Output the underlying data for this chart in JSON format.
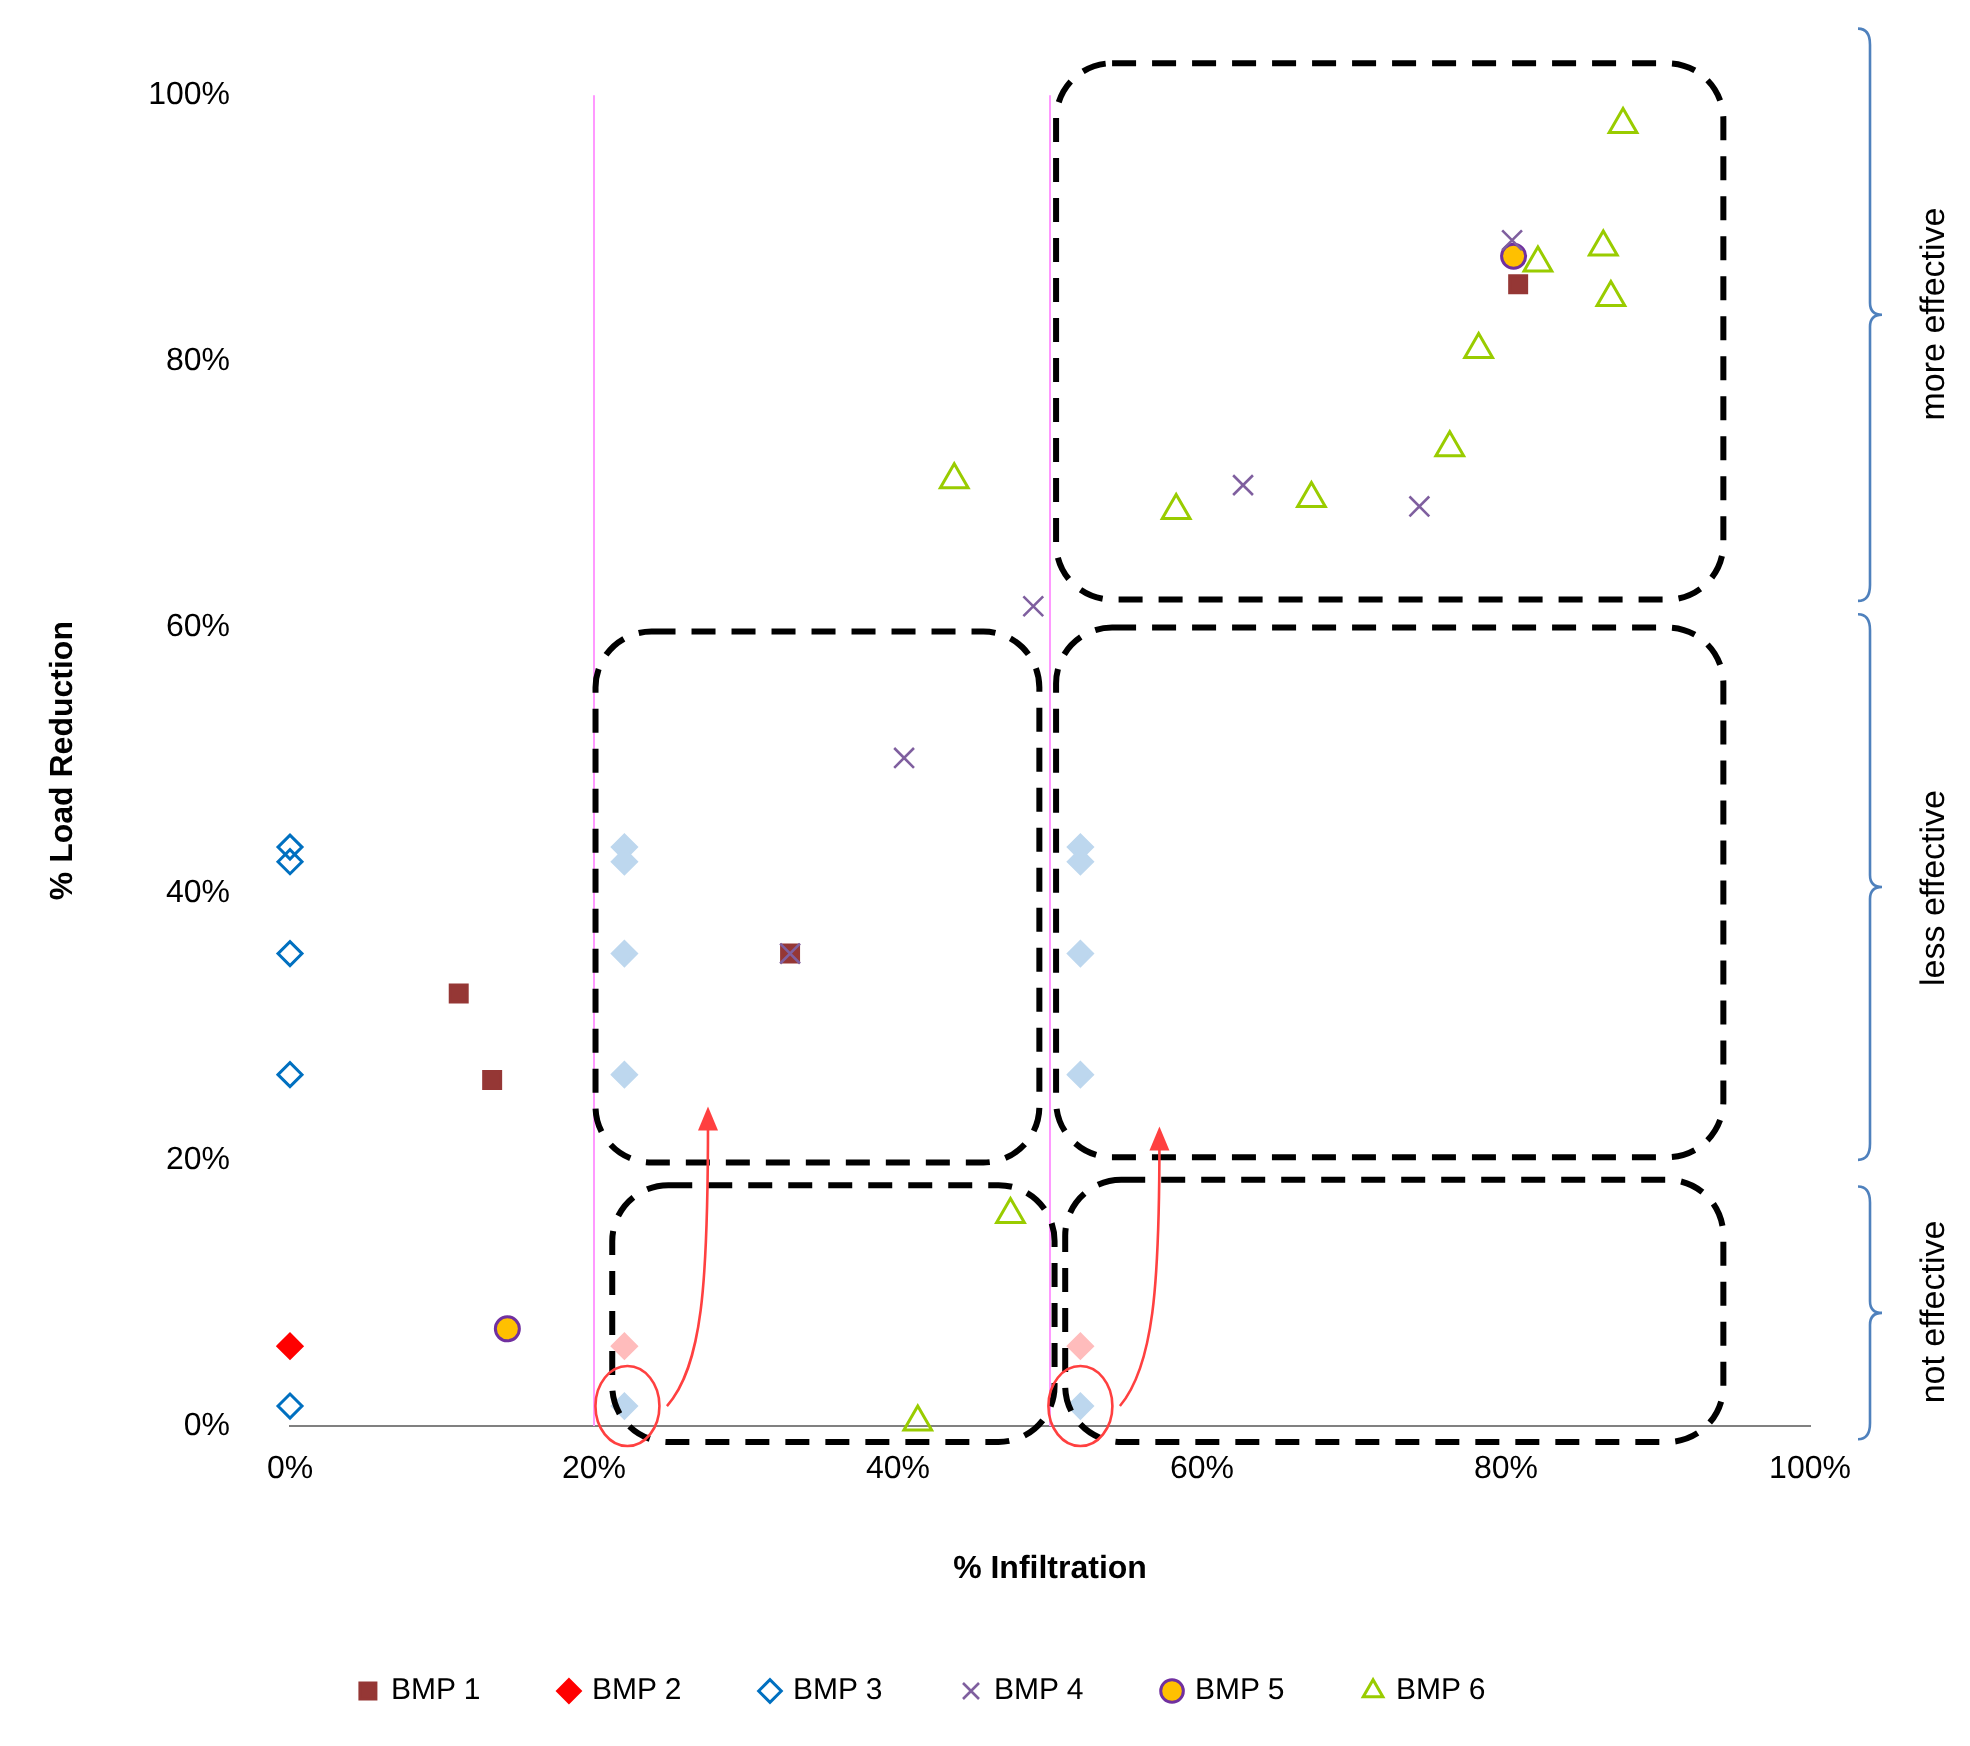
{
  "chart_data": {
    "type": "scatter",
    "xlabel": "% Infiltration",
    "ylabel": "% Load Reduction",
    "xlim": [
      0,
      100
    ],
    "ylim": [
      0,
      100
    ],
    "xticks": [
      {
        "value": 0,
        "label": "0%"
      },
      {
        "value": 20,
        "label": "20%"
      },
      {
        "value": 40,
        "label": "40%"
      },
      {
        "value": 60,
        "label": "60%"
      },
      {
        "value": 80,
        "label": "80%"
      },
      {
        "value": 100,
        "label": "100%"
      }
    ],
    "yticks": [
      {
        "value": 0,
        "label": "0%"
      },
      {
        "value": 20,
        "label": "20%"
      },
      {
        "value": 40,
        "label": "40%"
      },
      {
        "value": 60,
        "label": "60%"
      },
      {
        "value": 80,
        "label": "80%"
      },
      {
        "value": 100,
        "label": "100%"
      }
    ],
    "grid": false,
    "legend": "bottom",
    "series": [
      {
        "name": "BMP 1",
        "color": "#953735",
        "marker": "square",
        "x": [
          11.1,
          13.3,
          32.9,
          80.8
        ],
        "values": [
          32.5,
          26.0,
          35.5,
          85.8
        ]
      },
      {
        "name": "BMP 2",
        "color": "#ff0000",
        "marker": "diamond",
        "x": [
          0
        ],
        "values": [
          6.0
        ]
      },
      {
        "name": "BMP 3",
        "color": "#0070c0",
        "marker": "diamond",
        "x": [
          0,
          0,
          0,
          0,
          0
        ],
        "values": [
          43.5,
          42.4,
          35.5,
          26.4,
          1.5
        ]
      },
      {
        "name": "BMP 4",
        "color": "#7f5f9f",
        "marker": "cross",
        "x": [
          32.9,
          40.4,
          48.9,
          62.7,
          74.3,
          80.4
        ],
        "values": [
          35.5,
          50.2,
          61.6,
          70.7,
          69.1,
          89.1
        ]
      },
      {
        "name": "BMP 5",
        "color": "#ffc000",
        "marker": "circle",
        "x": [
          14.3,
          80.5
        ],
        "values": [
          7.3,
          87.9
        ]
      },
      {
        "name": "BMP 6",
        "color": "#99cc00",
        "marker": "triangle",
        "x": [
          87.7,
          86.4,
          86.9,
          82.1,
          78.2,
          76.3,
          67.2,
          58.3,
          43.7,
          47.4,
          41.3
        ],
        "values": [
          97.8,
          88.6,
          84.8,
          87.4,
          80.9,
          73.5,
          69.7,
          68.8,
          71.1,
          15.9,
          0.3
        ]
      },
      {
        "color": "#ffbcbc",
        "marker": "diamond",
        "x": [
          22,
          52
        ],
        "values": [
          6.0,
          6.0
        ]
      },
      {
        "color": "#bdd7ee",
        "marker": "diamond",
        "x": [
          22,
          22,
          22,
          22,
          22,
          52,
          52,
          52,
          52,
          52
        ],
        "values": [
          43.5,
          42.4,
          35.5,
          26.4,
          1.5,
          43.5,
          42.4,
          35.5,
          26.4,
          1.5
        ]
      }
    ],
    "ref_lines": [
      {
        "axis": "x",
        "value": 20,
        "color": "#ff99ff"
      },
      {
        "axis": "x",
        "value": 50,
        "color": "#ff99ff"
      }
    ],
    "annotations": [
      "more effective",
      "less effective",
      "not effective"
    ]
  }
}
